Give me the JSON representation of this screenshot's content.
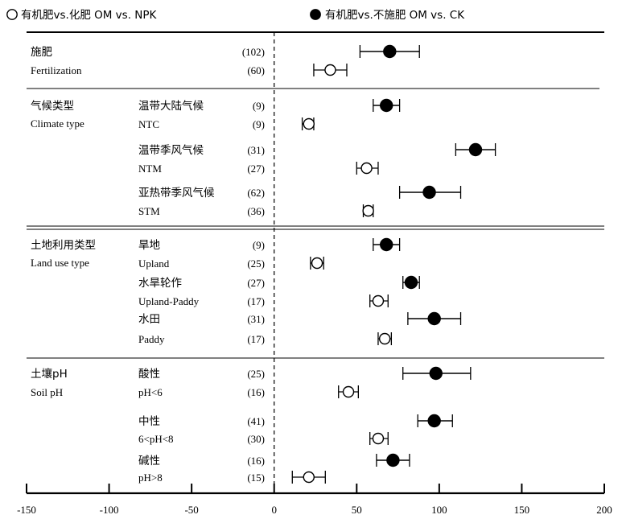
{
  "chart_data": {
    "type": "forest",
    "xlim": [
      -150,
      200
    ],
    "xticks": [
      -150,
      -100,
      -50,
      0,
      50,
      100,
      150,
      200
    ],
    "reference_line": 0,
    "legend": [
      {
        "key": "npk",
        "marker": "open-circle",
        "label": "有机肥vs.化肥 OM vs. NPK"
      },
      {
        "key": "ck",
        "marker": "filled-circle",
        "label": "有机肥vs.不施肥 OM vs. CK"
      }
    ],
    "groups": [
      {
        "label_cn": "施肥",
        "label_en": "Fertilization",
        "rows": [
          {
            "sub": "",
            "n": "(102)",
            "marker": "filled",
            "mean": 70,
            "lo": 52,
            "hi": 88
          },
          {
            "sub": "",
            "n": "(60)",
            "marker": "open",
            "mean": 34,
            "lo": 24,
            "hi": 44
          }
        ]
      },
      {
        "label_cn": "气候类型",
        "label_en": "Climate type",
        "rows": [
          {
            "sub": "温带大陆气候",
            "n": "(9)",
            "marker": "filled",
            "mean": 68,
            "lo": 60,
            "hi": 76
          },
          {
            "sub": "NTC",
            "n": "(9)",
            "marker": "open",
            "mean": 21,
            "lo": 17,
            "hi": 24
          },
          {
            "sub": "温带季风气候",
            "n": "(31)",
            "marker": "filled",
            "mean": 122,
            "lo": 110,
            "hi": 134
          },
          {
            "sub": "NTM",
            "n": "(27)",
            "marker": "open",
            "mean": 56,
            "lo": 50,
            "hi": 63
          },
          {
            "sub": "亚热带季风气候",
            "n": "(62)",
            "marker": "filled",
            "mean": 94,
            "lo": 76,
            "hi": 113
          },
          {
            "sub": "STM",
            "n": "(36)",
            "marker": "open",
            "mean": 57,
            "lo": 54,
            "hi": 60
          }
        ]
      },
      {
        "label_cn": "土地利用类型",
        "label_en": "Land use type",
        "rows": [
          {
            "sub": "旱地",
            "n": "(9)",
            "marker": "filled",
            "mean": 68,
            "lo": 60,
            "hi": 76
          },
          {
            "sub": "Upland",
            "n": "(25)",
            "marker": "open",
            "mean": 26,
            "lo": 22,
            "hi": 30
          },
          {
            "sub": "水旱轮作",
            "n": "(27)",
            "marker": "filled",
            "mean": 83,
            "lo": 78,
            "hi": 88
          },
          {
            "sub": "Upland-Paddy",
            "n": "(17)",
            "marker": "open",
            "mean": 63,
            "lo": 58,
            "hi": 69
          },
          {
            "sub": "水田",
            "n": "(31)",
            "marker": "filled",
            "mean": 97,
            "lo": 81,
            "hi": 113
          },
          {
            "sub": "Paddy",
            "n": "(17)",
            "marker": "open",
            "mean": 67,
            "lo": 63,
            "hi": 71
          }
        ]
      },
      {
        "label_cn": "土壤pH",
        "label_en": "Soil pH",
        "rows": [
          {
            "sub": "酸性",
            "n": "(25)",
            "marker": "filled",
            "mean": 98,
            "lo": 78,
            "hi": 119
          },
          {
            "sub": "pH<6",
            "n": "(16)",
            "marker": "open",
            "mean": 45,
            "lo": 39,
            "hi": 51
          },
          {
            "sub": "中性",
            "n": "(41)",
            "marker": "filled",
            "mean": 97,
            "lo": 87,
            "hi": 108
          },
          {
            "sub": "6<pH<8",
            "n": "(30)",
            "marker": "open",
            "mean": 63,
            "lo": 58,
            "hi": 69
          },
          {
            "sub": "碱性",
            "n": "(16)",
            "marker": "filled",
            "mean": 72,
            "lo": 62,
            "hi": 82
          },
          {
            "sub": "pH>8",
            "n": "(15)",
            "marker": "open",
            "mean": 21,
            "lo": 11,
            "hi": 31
          }
        ]
      }
    ]
  }
}
